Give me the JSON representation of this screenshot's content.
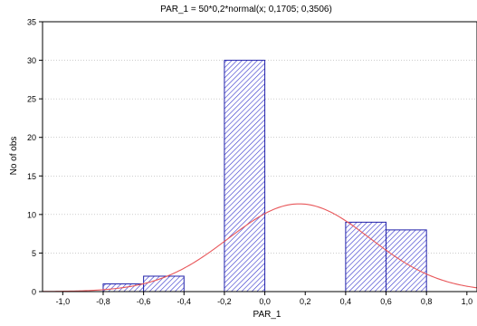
{
  "chart_data": {
    "type": "bar",
    "title": "PAR_1 = 50*0,2*normal(x; 0,1705; 0,3506)",
    "xlabel": "PAR_1",
    "ylabel": "No of obs",
    "xlim": [
      -1.1,
      1.05
    ],
    "ylim": [
      0,
      35
    ],
    "x_ticks": [
      -1.0,
      -0.8,
      -0.6,
      -0.4,
      -0.2,
      0.0,
      0.2,
      0.4,
      0.6,
      0.8,
      1.0
    ],
    "x_tick_labels": [
      "-1,0",
      "-0,8",
      "-0,6",
      "-0,4",
      "-0,2",
      "0,0",
      "0,2",
      "0,4",
      "0,6",
      "0,8",
      "1,0"
    ],
    "y_ticks": [
      0,
      5,
      10,
      15,
      20,
      25,
      30,
      35
    ],
    "y_tick_labels": [
      "0",
      "5",
      "10",
      "15",
      "20",
      "25",
      "30",
      "35"
    ],
    "grid": true,
    "bins": [
      {
        "from": -0.8,
        "to": -0.6,
        "value": 1
      },
      {
        "from": -0.6,
        "to": -0.4,
        "value": 2
      },
      {
        "from": -0.4,
        "to": -0.2,
        "value": 0
      },
      {
        "from": -0.2,
        "to": 0.0,
        "value": 30
      },
      {
        "from": 0.0,
        "to": 0.2,
        "value": 0
      },
      {
        "from": 0.2,
        "to": 0.4,
        "value": 0
      },
      {
        "from": 0.4,
        "to": 0.6,
        "value": 9
      },
      {
        "from": 0.6,
        "to": 0.8,
        "value": 8
      }
    ],
    "fit_curve": {
      "type": "normal",
      "scale": 10,
      "mean": 0.1705,
      "sd": 0.3506
    },
    "colors": {
      "bar_stroke": "#2222aa",
      "bar_hatch": "#3333cc",
      "bar_fill": "#ffffff",
      "curve": "#e8575a",
      "grid": "#b0b0b0",
      "axis": "#000000",
      "text": "#000000"
    }
  }
}
